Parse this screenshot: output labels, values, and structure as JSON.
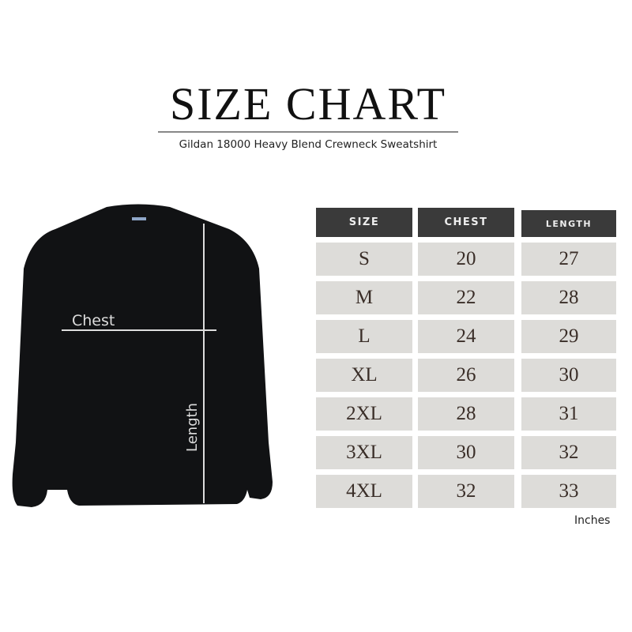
{
  "header": {
    "title": "SIZE CHART",
    "subtitle": "Gildan 18000 Heavy Blend Crewneck Sweatshirt"
  },
  "diagram": {
    "chest_label": "Chest",
    "length_label": "Length",
    "garment_color": "#111214"
  },
  "table": {
    "columns": [
      "SIZE",
      "CHEST",
      "LENGTH"
    ],
    "rows": [
      [
        "S",
        "20",
        "27"
      ],
      [
        "M",
        "22",
        "28"
      ],
      [
        "L",
        "24",
        "29"
      ],
      [
        "XL",
        "26",
        "30"
      ],
      [
        "2XL",
        "28",
        "31"
      ],
      [
        "3XL",
        "30",
        "32"
      ],
      [
        "4XL",
        "32",
        "33"
      ]
    ],
    "units": "Inches",
    "header_color": "#3a3a3a",
    "cell_color": "#dddcd9"
  }
}
